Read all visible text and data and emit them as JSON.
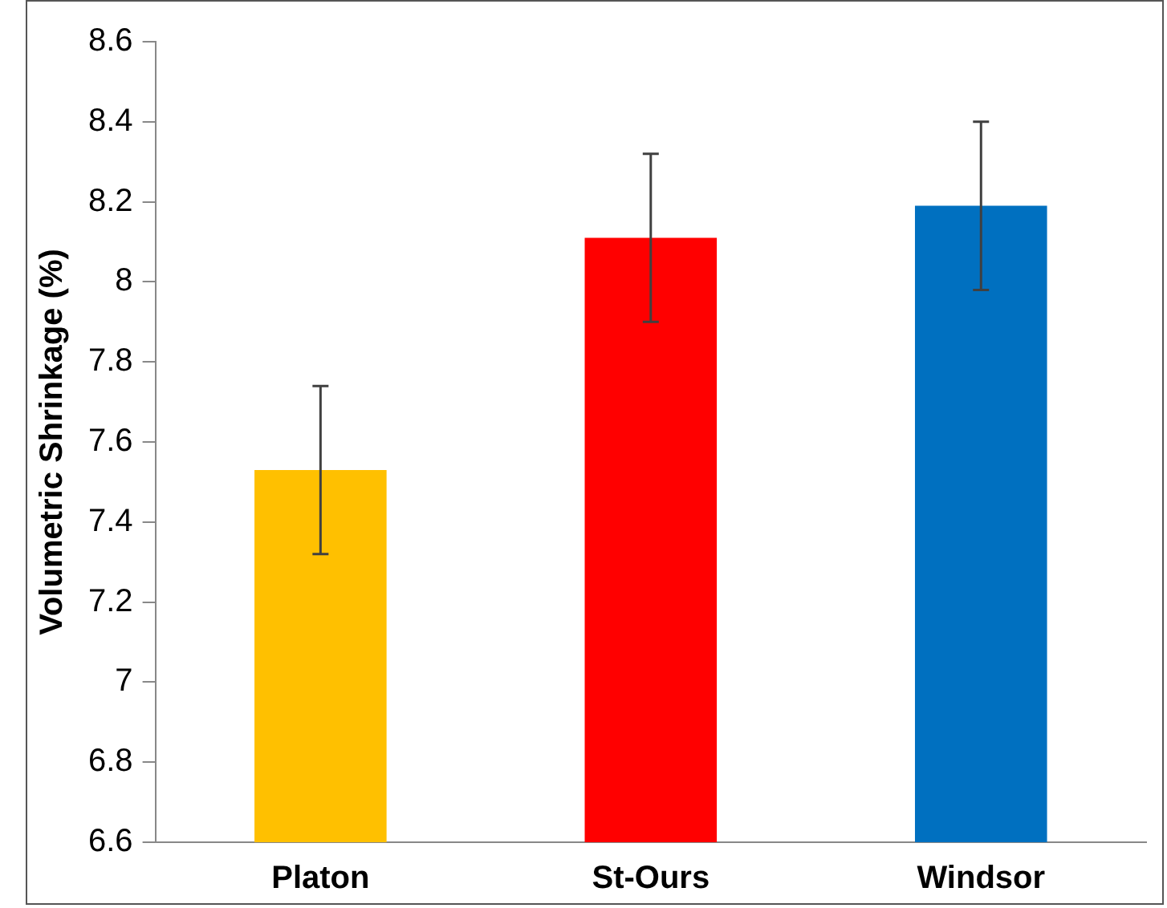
{
  "chart_data": {
    "type": "bar",
    "ylabel": "Volumetric Shrinkage (%)",
    "categories": [
      "Platon",
      "St-Ours",
      "Windsor"
    ],
    "values": [
      7.53,
      8.11,
      8.19
    ],
    "colors": [
      "#ffc000",
      "#ff0000",
      "#0070c0"
    ],
    "errors": [
      0.21,
      0.21,
      0.21
    ],
    "ylim": [
      6.6,
      8.6
    ],
    "yticks": [
      6.6,
      6.8,
      7,
      7.2,
      7.4,
      7.6,
      7.8,
      8,
      8.2,
      8.4,
      8.6
    ],
    "grid": false,
    "legend": false
  }
}
